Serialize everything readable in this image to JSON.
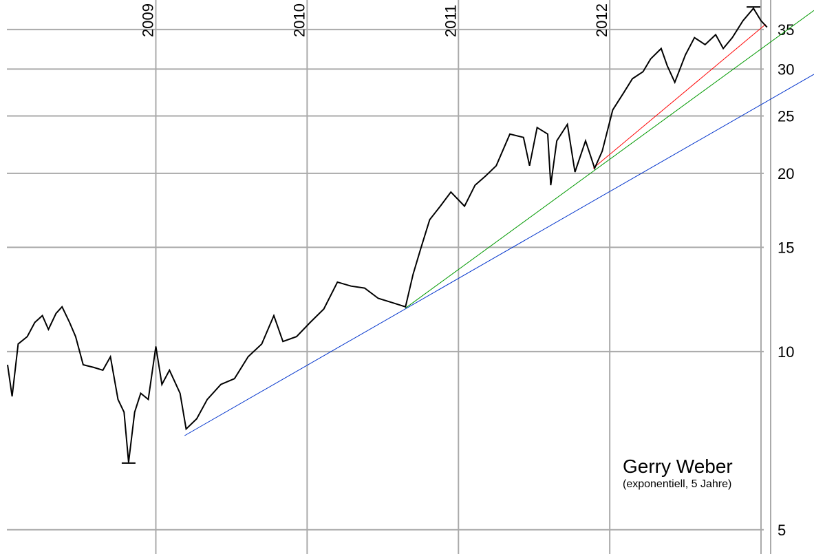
{
  "chart_data": {
    "type": "line",
    "title": "Gerry Weber",
    "subtitle": "(exponentiell, 5 Jahre)",
    "log_scale": true,
    "grid": true,
    "xlim": [
      2007.97,
      2013.35
    ],
    "xticks": [
      2009,
      2010,
      2011,
      2012
    ],
    "ylim": [
      4.55,
      39.25
    ],
    "yticks": [
      5,
      10,
      15,
      20,
      25,
      30,
      35
    ],
    "series": [
      {
        "color": "#000000",
        "x": [
          2008.02,
          2008.05,
          2008.09,
          2008.15,
          2008.2,
          2008.25,
          2008.29,
          2008.34,
          2008.38,
          2008.43,
          2008.47,
          2008.52,
          2008.59,
          2008.65,
          2008.7,
          2008.75,
          2008.79,
          2008.82,
          2008.86,
          2008.9,
          2008.95,
          2009.0,
          2009.04,
          2009.09,
          2009.16,
          2009.2,
          2009.27,
          2009.34,
          2009.43,
          2009.52,
          2009.61,
          2009.7,
          2009.78,
          2009.84,
          2009.93,
          2010.02,
          2010.11,
          2010.2,
          2010.29,
          2010.38,
          2010.47,
          2010.56,
          2010.65,
          2010.7,
          2010.75,
          2010.81,
          2010.88,
          2010.95,
          2011.04,
          2011.11,
          2011.18,
          2011.25,
          2011.34,
          2011.43,
          2011.47,
          2011.52,
          2011.59,
          2011.61,
          2011.65,
          2011.72,
          2011.77,
          2011.84,
          2011.9,
          2011.95,
          2012.02,
          2012.09,
          2012.15,
          2012.22,
          2012.27,
          2012.34,
          2012.38,
          2012.43,
          2012.5,
          2012.56,
          2012.63,
          2012.7,
          2012.75,
          2012.81,
          2012.88,
          2012.95,
          2013.0,
          2013.04
        ],
        "values": [
          9.5,
          8.4,
          10.3,
          10.6,
          11.2,
          11.5,
          10.9,
          11.6,
          11.9,
          11.2,
          10.6,
          9.5,
          9.4,
          9.3,
          9.8,
          8.3,
          7.9,
          6.5,
          7.9,
          8.5,
          8.3,
          10.2,
          8.8,
          9.3,
          8.5,
          7.4,
          7.7,
          8.3,
          8.8,
          9.0,
          9.8,
          10.3,
          11.5,
          10.4,
          10.6,
          11.2,
          11.8,
          13.1,
          12.9,
          12.8,
          12.3,
          12.1,
          11.9,
          13.5,
          14.9,
          16.7,
          17.6,
          18.6,
          17.6,
          19.1,
          19.8,
          20.6,
          23.3,
          23.0,
          20.6,
          23.9,
          23.3,
          19.1,
          22.7,
          24.2,
          20.1,
          22.7,
          20.4,
          21.8,
          25.6,
          27.3,
          28.9,
          29.7,
          31.2,
          32.5,
          30.4,
          28.5,
          31.7,
          33.9,
          33.0,
          34.3,
          32.5,
          33.9,
          36.2,
          38.0,
          36.2,
          35.3
        ]
      }
    ],
    "trendlines": [
      {
        "color": "#0033cc",
        "x": [
          2009.19,
          2013.35
        ],
        "values": [
          7.21,
          29.4
        ]
      },
      {
        "color": "#009900",
        "x": [
          2010.65,
          2013.35
        ],
        "values": [
          11.84,
          37.7
        ]
      },
      {
        "color": "#ff0000",
        "x": [
          2011.89,
          2013.03
        ],
        "values": [
          20.4,
          35.7
        ]
      }
    ],
    "extremes": [
      {
        "x": 2008.82,
        "value": 6.48
      },
      {
        "x": 2012.95,
        "value": 38.2
      }
    ]
  }
}
